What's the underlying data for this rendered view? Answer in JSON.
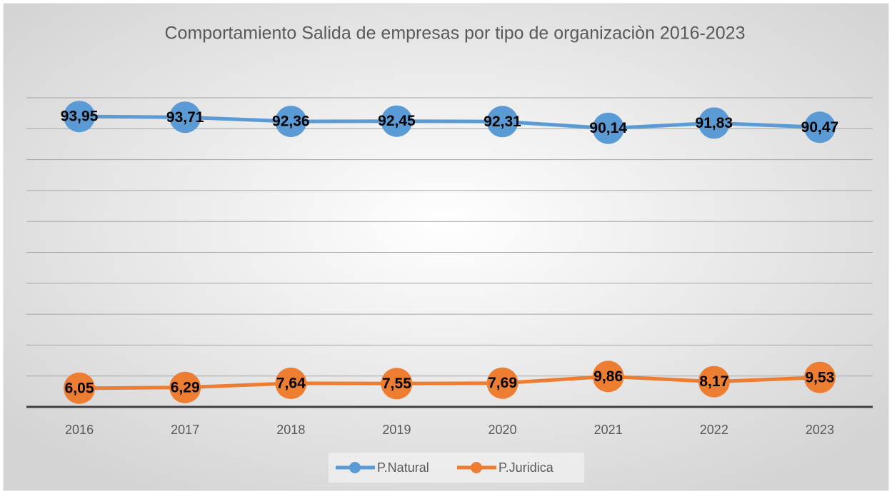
{
  "chart_data": {
    "type": "line",
    "title": "Comportamiento Salida de empresas por tipo de organizaciòn 2016-2023",
    "categories": [
      "2016",
      "2017",
      "2018",
      "2019",
      "2020",
      "2021",
      "2022",
      "2023"
    ],
    "series": [
      {
        "name": "P.Natural",
        "color": "#5b9bd5",
        "values": [
          93.95,
          93.71,
          92.36,
          92.45,
          92.31,
          90.14,
          91.83,
          90.47
        ],
        "value_labels": [
          "93,95",
          "93,71",
          "92,36",
          "92,45",
          "92,31",
          "90,14",
          "91,83",
          "90,47"
        ]
      },
      {
        "name": "P.Juridica",
        "color": "#ed7d31",
        "values": [
          6.05,
          6.29,
          7.64,
          7.55,
          7.69,
          9.86,
          8.17,
          9.53
        ],
        "value_labels": [
          "6,05",
          "6,29",
          "7,64",
          "7,55",
          "7,69",
          "9,86",
          "8,17",
          "9,53"
        ]
      }
    ],
    "ylim": [
      0,
      100
    ],
    "yticks": [
      0,
      10,
      20,
      30,
      40,
      50,
      60,
      70,
      80,
      90,
      100
    ],
    "grid": true,
    "legend": "bottom"
  }
}
